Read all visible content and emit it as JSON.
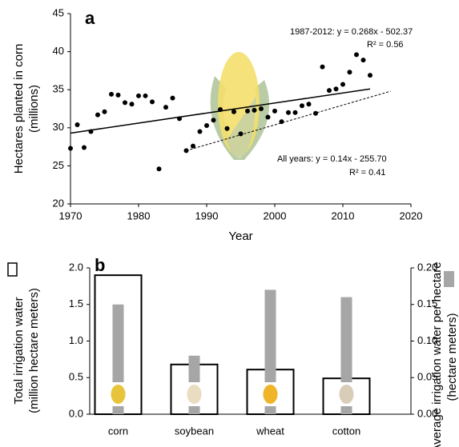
{
  "chart_data": [
    {
      "type": "scatter",
      "panel": "a",
      "x_label": "Year",
      "y_label": [
        "Hectares planted in corn",
        "(millions)"
      ],
      "x": [
        1970,
        1971,
        1972,
        1973,
        1974,
        1975,
        1976,
        1977,
        1978,
        1979,
        1980,
        1981,
        1982,
        1983,
        1984,
        1985,
        1986,
        1987,
        1988,
        1989,
        1990,
        1991,
        1992,
        1993,
        1994,
        1995,
        1996,
        1997,
        1998,
        1999,
        2000,
        2001,
        2002,
        2003,
        2004,
        2005,
        2006,
        2007,
        2008,
        2009,
        2010,
        2011,
        2012,
        2013,
        2014
      ],
      "values": [
        27.3,
        30.4,
        27.4,
        29.5,
        31.7,
        32.1,
        34.4,
        34.3,
        33.3,
        33.1,
        34.2,
        34.2,
        33.4,
        24.6,
        32.7,
        33.9,
        31.2,
        27.0,
        27.6,
        29.5,
        30.3,
        31.0,
        32.4,
        29.9,
        32.1,
        29.2,
        32.2,
        32.3,
        32.5,
        31.4,
        32.2,
        30.8,
        32.0,
        32.0,
        32.9,
        33.1,
        31.9,
        38.0,
        34.9,
        35.1,
        35.7,
        37.3,
        39.6,
        38.9,
        36.9
      ],
      "color": "#000000",
      "trend_lines": [
        {
          "x": [
            1970,
            2014
          ],
          "y": [
            29.3,
            35.1
          ],
          "style": "solid"
        },
        {
          "x": [
            1987,
            2017
          ],
          "y": [
            27.0,
            34.8
          ],
          "style": "dashed"
        }
      ],
      "annotations": [
        "1987-2012: y = 0.268x - 502.37",
        "R² = 0.56",
        "All years: y = 0.14x - 255.70",
        "R² = 0.41"
      ],
      "xlim": [
        1970,
        2020
      ],
      "xticks": [
        1970,
        1980,
        1990,
        2000,
        2010,
        2020
      ],
      "ylim": [
        20,
        45
      ],
      "yticks": [
        20,
        25,
        30,
        35,
        40,
        45
      ]
    },
    {
      "type": "bar",
      "panel": "b",
      "categories": [
        "corn",
        "soybean",
        "wheat",
        "cotton"
      ],
      "y_label": [
        "Total irrigation water",
        "(million hectare meters)"
      ],
      "y2_label": [
        "Average irrigation water per hectare",
        "(hectare meters)"
      ],
      "series": [
        {
          "values": [
            1.9,
            0.68,
            0.61,
            0.49
          ],
          "color": "#000000",
          "style": "outline"
        },
        {
          "values": [
            0.15,
            0.08,
            0.17,
            0.16
          ],
          "color": "#a6a6a6",
          "style": "filled",
          "axis": "y2"
        }
      ],
      "ylim": [
        0,
        2
      ],
      "yticks": [
        {
          "value": 0,
          "label": "0.0"
        },
        0.5,
        {
          "value": 1,
          "label": "1.0"
        },
        1.5,
        {
          "value": 2,
          "label": "2.0"
        }
      ],
      "y2lim": [
        0,
        0.2
      ],
      "y2ticks": [
        {
          "value": 0,
          "label": "0.00"
        },
        {
          "value": 0.05,
          "label": "0.05"
        },
        {
          "value": 0.1,
          "label": "0.10"
        },
        {
          "value": 0.15,
          "label": "0.15"
        },
        {
          "value": 0.2,
          "label": "0.20"
        }
      ]
    }
  ]
}
